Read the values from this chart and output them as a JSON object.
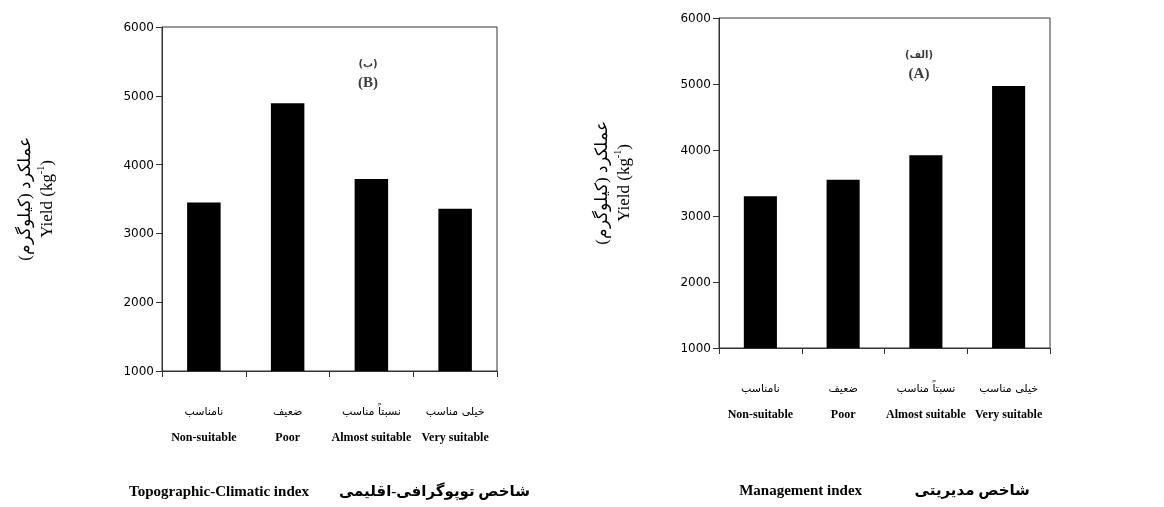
{
  "chart_data": [
    {
      "type": "bar",
      "title": "(ب)\n(B)",
      "categories": [
        "نامناسب\nNon-suitable",
        "ضعیف\nPoor",
        "نسبتاً مناسب\nAlmost suitable",
        "خیلی مناسب\nVery suitable"
      ],
      "values": [
        3450,
        4890,
        3790,
        3360
      ],
      "color": "#000000",
      "ylim": [
        1000,
        6000
      ],
      "yticks": [
        1000,
        2000,
        3000,
        4000,
        5000,
        6000
      ],
      "ylabel": "عملکرد (کیلوگرم)\nYield (kg$^{-1}$)",
      "xlabel": "Topographic-Climatic index        شاخص توپوگرافی-اقلیمی",
      "grid": false
    },
    {
      "type": "bar",
      "title": "(الف)\n(A)",
      "categories": [
        "نامناسب\nNon-suitable",
        "ضعیف\nPoor",
        "نسبتاً مناسب\nAlmost suitable",
        "خیلی مناسب\nVery suitable"
      ],
      "values": [
        3300,
        3550,
        3920,
        4970
      ],
      "color": "#000000",
      "ylim": [
        1000,
        6000
      ],
      "yticks": [
        1000,
        2000,
        3000,
        4000,
        5000,
        6000
      ],
      "ylabel": "عملکرد (کیلوگرم)\nYield (kg$^{-1}$)",
      "xlabel": "Management index              شاخص مدیریتی",
      "grid": false
    }
  ]
}
